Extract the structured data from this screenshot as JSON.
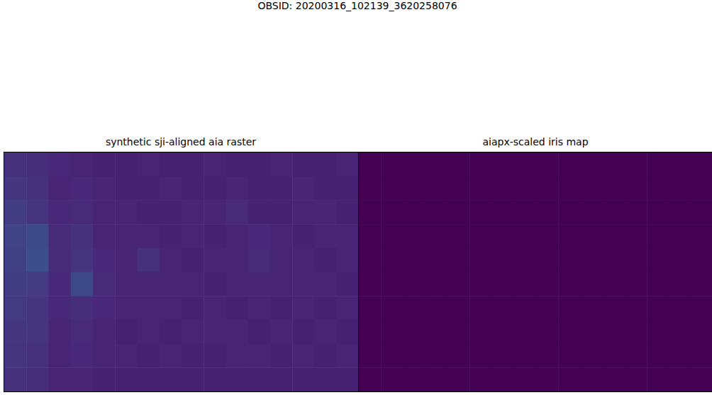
{
  "title": "OBSID: 20200316_102139_3620258076",
  "chart_data": [
    {
      "type": "heatmap",
      "title": "synthetic sji-aligned aia raster",
      "tick_labels": false,
      "color_range": [
        0,
        1
      ],
      "cells": [
        [
          0.14,
          0.13,
          0.11,
          0.1,
          0.09,
          0.09,
          0.1,
          0.09,
          0.09,
          0.1,
          0.09,
          0.09,
          0.1,
          0.09,
          0.09,
          0.1
        ],
        [
          0.16,
          0.14,
          0.1,
          0.11,
          0.1,
          0.09,
          0.09,
          0.1,
          0.09,
          0.09,
          0.1,
          0.09,
          0.09,
          0.1,
          0.09,
          0.09
        ],
        [
          0.18,
          0.15,
          0.11,
          0.12,
          0.1,
          0.1,
          0.09,
          0.09,
          0.1,
          0.1,
          0.12,
          0.09,
          0.09,
          0.1,
          0.1,
          0.09
        ],
        [
          0.2,
          0.22,
          0.12,
          0.14,
          0.1,
          0.1,
          0.1,
          0.09,
          0.1,
          0.09,
          0.1,
          0.11,
          0.1,
          0.09,
          0.1,
          0.1
        ],
        [
          0.19,
          0.24,
          0.12,
          0.15,
          0.11,
          0.1,
          0.14,
          0.1,
          0.09,
          0.1,
          0.1,
          0.12,
          0.1,
          0.1,
          0.09,
          0.1
        ],
        [
          0.18,
          0.17,
          0.11,
          0.22,
          0.12,
          0.1,
          0.1,
          0.1,
          0.1,
          0.09,
          0.1,
          0.1,
          0.1,
          0.1,
          0.1,
          0.09
        ],
        [
          0.17,
          0.15,
          0.11,
          0.13,
          0.11,
          0.1,
          0.1,
          0.1,
          0.09,
          0.1,
          0.09,
          0.1,
          0.09,
          0.1,
          0.09,
          0.1
        ],
        [
          0.16,
          0.15,
          0.1,
          0.12,
          0.1,
          0.09,
          0.1,
          0.09,
          0.1,
          0.1,
          0.1,
          0.09,
          0.1,
          0.09,
          0.1,
          0.09
        ],
        [
          0.15,
          0.14,
          0.1,
          0.11,
          0.1,
          0.1,
          0.09,
          0.1,
          0.09,
          0.09,
          0.1,
          0.1,
          0.09,
          0.1,
          0.09,
          0.1
        ],
        [
          0.14,
          0.13,
          0.1,
          0.1,
          0.09,
          0.09,
          0.09,
          0.09,
          0.09,
          0.09,
          0.09,
          0.09,
          0.09,
          0.09,
          0.09,
          0.09
        ]
      ]
    },
    {
      "type": "heatmap",
      "title": "aiapx-scaled iris map",
      "tick_labels": false,
      "color_range": [
        0,
        1
      ],
      "cells": [
        [
          0,
          0,
          0,
          0,
          0,
          0,
          0,
          0,
          0,
          0,
          0,
          0,
          0,
          0,
          0,
          0
        ],
        [
          0,
          0,
          0,
          0,
          0,
          0,
          0,
          0,
          0,
          0,
          0,
          0,
          0,
          0,
          0,
          0
        ],
        [
          0,
          0,
          0,
          0,
          0,
          0,
          0,
          0,
          0,
          0,
          0,
          0,
          0,
          0,
          0,
          0
        ],
        [
          0,
          0,
          0,
          0,
          0,
          0,
          0,
          0,
          0,
          0,
          0,
          0,
          0,
          0,
          0,
          0
        ],
        [
          0,
          0,
          0,
          0,
          0,
          0,
          0,
          0,
          0,
          0,
          0,
          0,
          0,
          0,
          0,
          0
        ],
        [
          0,
          0,
          0,
          0,
          0,
          0,
          0,
          0,
          0,
          0,
          0,
          0,
          0,
          0,
          0,
          0
        ],
        [
          0,
          0,
          0,
          0,
          0,
          0,
          0,
          0,
          0,
          0,
          0,
          0,
          0,
          0,
          0,
          0
        ],
        [
          0,
          0,
          0,
          0,
          0,
          0,
          0,
          0,
          0,
          0,
          0,
          0,
          0,
          0,
          0,
          0
        ],
        [
          0,
          0,
          0,
          0,
          0,
          0,
          0,
          0,
          0,
          0,
          0,
          0,
          0,
          0,
          0,
          0
        ],
        [
          0,
          0,
          0,
          0,
          0,
          0,
          0,
          0,
          0,
          0,
          0,
          0,
          0,
          0,
          0,
          0
        ]
      ]
    }
  ]
}
